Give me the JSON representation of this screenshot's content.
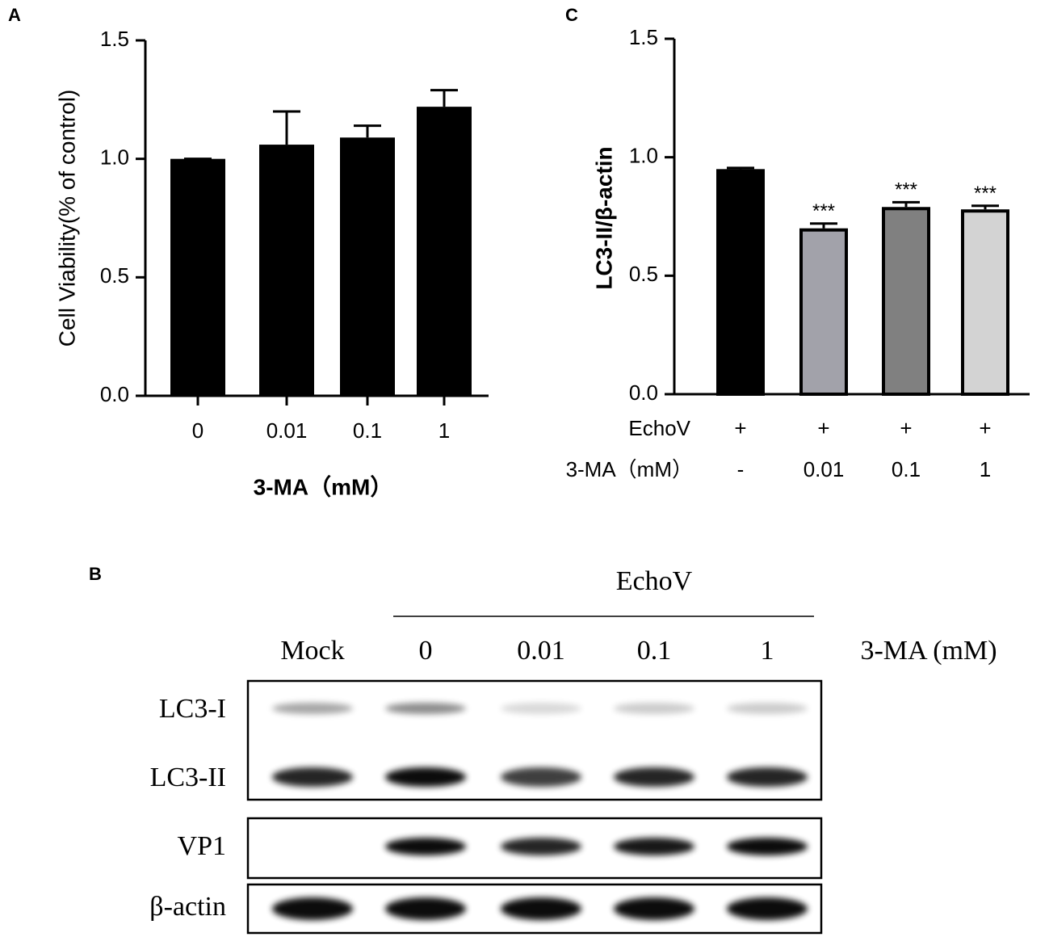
{
  "chart_data": [
    {
      "type": "bar",
      "panel": "A",
      "ylabel": "Cell Viability(% of control)",
      "xlabel": "3-MA（mM）",
      "categories": [
        "0",
        "0.01",
        "0.1",
        "1"
      ],
      "values": [
        1.0,
        1.06,
        1.09,
        1.22
      ],
      "errors": [
        0,
        0.14,
        0.05,
        0.07
      ],
      "colors": [
        "#000000",
        "#000000",
        "#000000",
        "#000000"
      ],
      "ylim": [
        0,
        1.5
      ],
      "yticks": [
        {
          "value": 0,
          "label": "0.0"
        },
        0.5,
        {
          "value": 1,
          "label": "1.0"
        },
        1.5
      ]
    },
    {
      "type": "bar",
      "panel": "C",
      "ylabel": "LC3-II/β-actin",
      "treatment_label": "EchoV",
      "treatment": [
        "+",
        "+",
        "+",
        "+"
      ],
      "category_label": "3-MA（mM）",
      "categories": [
        "-",
        "0.01",
        "0.1",
        "1"
      ],
      "values": [
        0.95,
        0.7,
        0.79,
        0.78
      ],
      "errors": [
        0.005,
        0.02,
        0.02,
        0.015
      ],
      "annotations": [
        null,
        "***",
        "***",
        "***"
      ],
      "colors": [
        "#000000",
        "#a2a2aa",
        "#808080",
        "#d3d3d3"
      ],
      "ylim": [
        0,
        1.5
      ],
      "yticks": [
        {
          "value": 0,
          "label": "0.0"
        },
        0.5,
        {
          "value": 1,
          "label": "1.0"
        },
        1.5
      ]
    }
  ],
  "blot": {
    "panel": "B",
    "group": "EchoV",
    "lanes": [
      "Mock",
      "0",
      "0.01",
      "0.1",
      "1"
    ],
    "lane_unit": "3-MA (mM)",
    "rows": [
      "LC3-I",
      "LC3-II",
      "VP1",
      "β-actin"
    ]
  }
}
